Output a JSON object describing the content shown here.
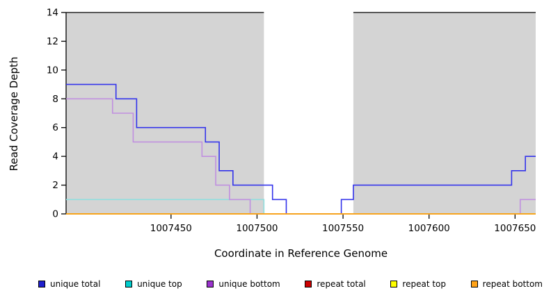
{
  "chart_data": {
    "type": "line",
    "subtype": "step-after",
    "title": "",
    "xlabel": "Coordinate in Reference Genome",
    "ylabel": "Read Coverage Depth",
    "xlim": [
      1007389,
      1007662
    ],
    "ylim": [
      0,
      14
    ],
    "xticks": [
      1007450,
      1007500,
      1007550,
      1007600,
      1007650
    ],
    "yticks": [
      0,
      2,
      4,
      6,
      8,
      10,
      12,
      14
    ],
    "grid": false,
    "legend_position": "bottom",
    "shade_color": "#d4d4d4",
    "axis_color": "#000000",
    "shaded_regions": [
      [
        1007389,
        1007504
      ],
      [
        1007556,
        1007662
      ]
    ],
    "series": [
      {
        "name": "unique total",
        "color": "#1f1fcd",
        "line_color": "#3333eb",
        "points": [
          [
            1007389,
            9
          ],
          [
            1007418,
            8
          ],
          [
            1007430,
            6
          ],
          [
            1007470,
            5
          ],
          [
            1007478,
            3
          ],
          [
            1007486,
            2
          ],
          [
            1007509,
            1
          ],
          [
            1007517,
            0
          ],
          [
            1007549,
            1
          ],
          [
            1007556,
            2
          ],
          [
            1007648,
            3
          ],
          [
            1007656,
            4
          ]
        ]
      },
      {
        "name": "unique top",
        "color": "#00cdcd",
        "line_color": "#8fdede",
        "points": [
          [
            1007389,
            1
          ],
          [
            1007504,
            0
          ]
        ]
      },
      {
        "name": "unique bottom",
        "color": "#9a32cd",
        "line_color": "#c08fe0",
        "points": [
          [
            1007389,
            8
          ],
          [
            1007416,
            7
          ],
          [
            1007428,
            5
          ],
          [
            1007468,
            4
          ],
          [
            1007476,
            2
          ],
          [
            1007484,
            1
          ],
          [
            1007496,
            0
          ],
          [
            1007653,
            1
          ]
        ]
      },
      {
        "name": "repeat total",
        "color": "#cd0000",
        "line_color": "#cd0000",
        "points": [
          [
            1007389,
            0
          ]
        ]
      },
      {
        "name": "repeat top",
        "color": "#ffff00",
        "line_color": "#ffff00",
        "points": [
          [
            1007389,
            0
          ]
        ]
      },
      {
        "name": "repeat bottom",
        "color": "#ffa217",
        "line_color": "#ffa217",
        "points": [
          [
            1007389,
            0
          ]
        ]
      }
    ]
  }
}
